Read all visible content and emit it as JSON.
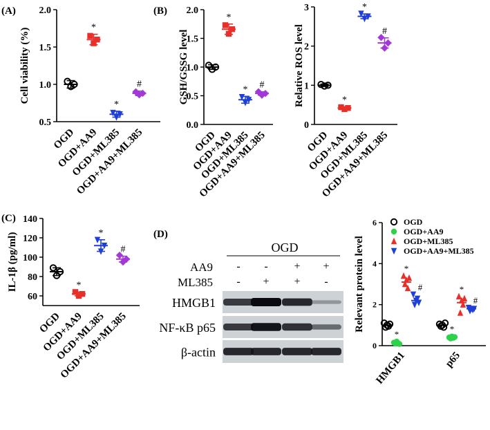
{
  "figure": {
    "panels": {
      "A": "(A)",
      "B": "(B)",
      "C": "(C)",
      "D": "(D)"
    },
    "groups": [
      "OGD",
      "OGD+AA9",
      "OGD+ML385",
      "OGD+AA9+ML385"
    ],
    "sig_star": "*",
    "sig_hash": "#",
    "colors": {
      "OGD": "#000000",
      "AA9": "#e8302a",
      "ML385": "#1f3fd6",
      "AA9ML385": "#a238d6",
      "AA9_D": "#2ed14a"
    }
  },
  "chart_data": [
    {
      "id": "cell-viability",
      "type": "scatter",
      "ylabel": "Cell viability (%)",
      "ylim": [
        0.5,
        2.0
      ],
      "yticks": [
        "0.5",
        "1.0",
        "1.5",
        "2.0"
      ],
      "categories": [
        "OGD",
        "OGD+AA9",
        "OGD+ML385",
        "OGD+AA9+ML385"
      ],
      "points": [
        [
          1.04,
          0.97,
          1.0
        ],
        [
          1.65,
          1.55,
          1.6
        ],
        [
          0.62,
          0.56,
          0.6
        ],
        [
          0.9,
          0.86,
          0.88
        ]
      ],
      "means": [
        1.0,
        1.6,
        0.6,
        0.88
      ],
      "errors": [
        0.05,
        0.07,
        0.04,
        0.03
      ],
      "marks": [
        "",
        "*",
        "*",
        "#"
      ]
    },
    {
      "id": "gsh-gssg",
      "type": "scatter",
      "ylabel": "GSH/GSSG level",
      "ylim": [
        0.0,
        2.0
      ],
      "yticks": [
        "0.0",
        "0.5",
        "1.0",
        "1.5",
        "2.0"
      ],
      "categories": [
        "OGD",
        "OGD+AA9",
        "OGD+ML385",
        "OGD+AA9+ML385"
      ],
      "points": [
        [
          1.03,
          0.96,
          1.0
        ],
        [
          1.73,
          1.58,
          1.66
        ],
        [
          0.48,
          0.38,
          0.43
        ],
        [
          0.57,
          0.51,
          0.54
        ]
      ],
      "means": [
        1.0,
        1.66,
        0.43,
        0.54
      ],
      "errors": [
        0.04,
        0.09,
        0.06,
        0.03
      ],
      "marks": [
        "",
        "*",
        "*",
        "#"
      ]
    },
    {
      "id": "ros",
      "type": "scatter",
      "ylabel": "Relative ROS level",
      "ylim": [
        0,
        3
      ],
      "yticks": [
        "0",
        "1",
        "2",
        "3"
      ],
      "categories": [
        "OGD",
        "OGD+AA9",
        "OGD+ML385",
        "OGD+AA9+ML385"
      ],
      "points": [
        [
          1.02,
          0.98,
          1.0
        ],
        [
          0.44,
          0.39,
          0.42
        ],
        [
          2.83,
          2.7,
          2.76
        ],
        [
          2.22,
          1.95,
          2.08
        ]
      ],
      "means": [
        1.0,
        0.42,
        2.76,
        2.08
      ],
      "errors": [
        0.03,
        0.03,
        0.06,
        0.13
      ],
      "marks": [
        "",
        "*",
        "*",
        "#"
      ]
    },
    {
      "id": "il1b",
      "type": "scatter",
      "ylabel": "IL-1β (pg/ml)",
      "ylim": [
        50,
        140
      ],
      "yticks": [
        "60",
        "80",
        "100",
        "120",
        "140"
      ],
      "categories": [
        "OGD",
        "OGD+AA9",
        "OGD+ML385",
        "OGD+AA9+ML385"
      ],
      "points": [
        [
          89,
          81,
          85
        ],
        [
          64,
          60,
          62
        ],
        [
          118,
          106,
          112
        ],
        [
          102,
          95,
          98
        ]
      ],
      "means": [
        85,
        62,
        112,
        98
      ],
      "errors": [
        4,
        2,
        6,
        3
      ],
      "marks": [
        "",
        "*",
        "*",
        "#"
      ]
    },
    {
      "id": "protein-level",
      "type": "scatter",
      "ylabel": "Relevant protein level",
      "ylim": [
        0,
        6
      ],
      "yticks": [
        "0",
        "2",
        "4",
        "6"
      ],
      "categories": [
        "HMGB1",
        "p65"
      ],
      "legend": [
        "OGD",
        "OGD+AA9",
        "OGD+ML385",
        "OGD+AA9+ML385"
      ],
      "series": [
        {
          "name": "OGD",
          "values": [
            [
              1.1,
              0.9,
              1.0,
              0.95,
              1.05
            ],
            [
              1.05,
              0.95,
              1.0,
              0.9,
              1.1
            ]
          ],
          "mean": [
            1.0,
            1.0
          ],
          "mark": ""
        },
        {
          "name": "OGD+AA9",
          "values": [
            [
              0.15,
              0.1,
              0.2,
              0.12,
              0.08
            ],
            [
              0.4,
              0.35,
              0.45,
              0.38,
              0.42
            ]
          ],
          "mean": [
            0.13,
            0.4
          ],
          "mark": "*"
        },
        {
          "name": "OGD+ML385",
          "values": [
            [
              3.4,
              3.0,
              3.2,
              2.8,
              3.3
            ],
            [
              2.4,
              1.6,
              2.2,
              2.0,
              2.3
            ]
          ],
          "mean": [
            3.1,
            2.1
          ],
          "mark": "*"
        },
        {
          "name": "OGD+AA9+ML385",
          "values": [
            [
              2.5,
              2.0,
              2.2,
              2.3,
              2.1
            ],
            [
              1.85,
              1.7,
              1.8,
              1.75,
              1.8
            ]
          ],
          "mean": [
            2.2,
            1.8
          ],
          "mark": "#"
        }
      ]
    }
  ],
  "blot": {
    "header": "OGD",
    "aa9_label": "AA9",
    "ml385_label": "ML385",
    "aa9_signs": [
      "-",
      "-",
      "+",
      "+"
    ],
    "ml385_signs": [
      "-",
      "+",
      "+",
      "-"
    ],
    "rows": [
      {
        "label": "HMGB1",
        "intensity": [
          0.75,
          1.0,
          0.85,
          0.15
        ]
      },
      {
        "label": "NF-κB p65",
        "intensity": [
          0.75,
          0.95,
          0.8,
          0.45
        ]
      },
      {
        "label": "β-actin",
        "intensity": [
          0.85,
          0.85,
          0.85,
          0.85
        ]
      }
    ]
  }
}
